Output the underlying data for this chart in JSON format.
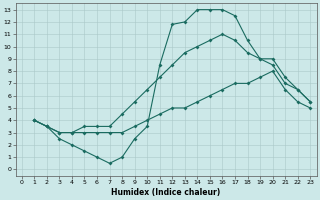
{
  "title": "",
  "xlabel": "Humidex (Indice chaleur)",
  "ylabel": "",
  "bg_color": "#cce8e8",
  "line_color": "#1a6b60",
  "grid_color": "#aac8c8",
  "xlim": [
    -0.5,
    23.5
  ],
  "ylim": [
    -0.5,
    13.5
  ],
  "xticks": [
    0,
    1,
    2,
    3,
    4,
    5,
    6,
    7,
    8,
    9,
    10,
    11,
    12,
    13,
    14,
    15,
    16,
    17,
    18,
    19,
    20,
    21,
    22,
    23
  ],
  "yticks": [
    0,
    1,
    2,
    3,
    4,
    5,
    6,
    7,
    8,
    9,
    10,
    11,
    12,
    13
  ],
  "line1_x": [
    1,
    2,
    3,
    4,
    5,
    6,
    7,
    8,
    9,
    10,
    11,
    12,
    13,
    14,
    15,
    16,
    17,
    18,
    19,
    20,
    21,
    22,
    23
  ],
  "line1_y": [
    4.0,
    3.5,
    2.5,
    2.0,
    1.5,
    1.0,
    0.5,
    1.0,
    2.5,
    3.5,
    8.5,
    11.8,
    12.0,
    13.0,
    13.0,
    13.0,
    12.5,
    10.5,
    9.0,
    8.5,
    7.0,
    6.5,
    5.5
  ],
  "line2_x": [
    1,
    2,
    3,
    4,
    5,
    6,
    7,
    8,
    9,
    10,
    11,
    12,
    13,
    14,
    15,
    16,
    17,
    18,
    19,
    20,
    21,
    22,
    23
  ],
  "line2_y": [
    4.0,
    3.5,
    3.0,
    3.0,
    3.5,
    3.5,
    3.5,
    4.5,
    5.5,
    6.5,
    7.5,
    8.5,
    9.5,
    10.0,
    10.5,
    11.0,
    10.5,
    9.5,
    9.0,
    9.0,
    7.5,
    6.5,
    5.5
  ],
  "line3_x": [
    1,
    2,
    3,
    4,
    5,
    6,
    7,
    8,
    9,
    10,
    11,
    12,
    13,
    14,
    15,
    16,
    17,
    18,
    19,
    20,
    21,
    22,
    23
  ],
  "line3_y": [
    4.0,
    3.5,
    3.0,
    3.0,
    3.0,
    3.0,
    3.0,
    3.0,
    3.5,
    4.0,
    4.5,
    5.0,
    5.0,
    5.5,
    6.0,
    6.5,
    7.0,
    7.0,
    7.5,
    8.0,
    6.5,
    5.5,
    5.0
  ]
}
